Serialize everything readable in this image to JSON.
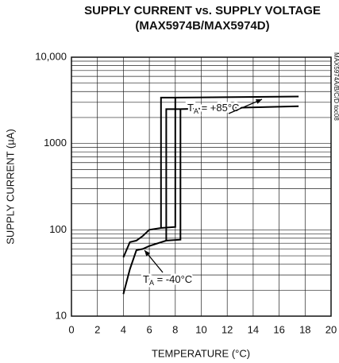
{
  "chart_data": {
    "type": "line",
    "title": "SUPPLY CURRENT vs. SUPPLY VOLTAGE",
    "subtitle": "(MAX5974B/MAX5974D)",
    "x_label": "TEMPERATURE (°C)",
    "y_label": "SUPPLY CURRENT (µA)",
    "side_note": "MAX5974A/B/C/D toc08",
    "xlim": [
      0,
      20
    ],
    "xticks": [
      0,
      2,
      4,
      6,
      8,
      10,
      12,
      14,
      16,
      18,
      20
    ],
    "ylim": [
      10,
      10000
    ],
    "yticks": [
      10,
      100,
      1000,
      {
        "value": 10000,
        "label": "10,000"
      }
    ],
    "y_scale": "log",
    "grid": true,
    "series": [
      {
        "name": [
          "T",
          "A",
          " = +85°C"
        ],
        "color": "#000000",
        "x": [
          4,
          4.5,
          5,
          5.5,
          6,
          6.9,
          8.0,
          8.0,
          17.5,
          null,
          6.9,
          6.9,
          8.0
        ],
        "values": [
          48,
          72,
          75,
          85,
          100,
          105,
          108,
          3400,
          3500,
          null,
          105,
          3400,
          3400
        ]
      },
      {
        "name": [
          "T",
          "A",
          " = -40°C"
        ],
        "color": "#000000",
        "x": [
          4,
          4.5,
          5,
          5.5,
          6,
          7.3,
          8.4,
          8.4,
          17.5,
          null,
          7.3,
          7.3,
          8.4
        ],
        "values": [
          18,
          35,
          58,
          60,
          65,
          75,
          77,
          2500,
          2700,
          null,
          75,
          2500,
          2500
        ]
      }
    ]
  }
}
